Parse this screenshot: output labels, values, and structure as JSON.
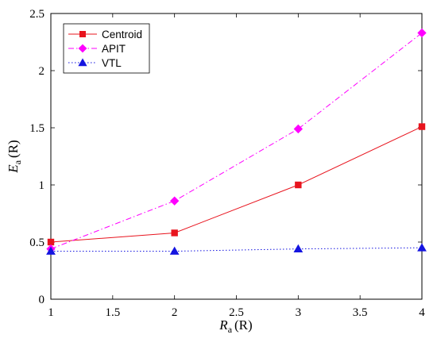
{
  "chart_data": {
    "type": "line",
    "title": "",
    "xlabel": {
      "main": "R",
      "sub": "a",
      "unit": "(R)"
    },
    "ylabel": {
      "main": "E",
      "sub": "a",
      "unit": "(R)"
    },
    "xlim": [
      1,
      4
    ],
    "ylim": [
      0,
      2.5
    ],
    "x_ticks": [
      1,
      1.5,
      2,
      2.5,
      3,
      3.5,
      4
    ],
    "x_tick_labels": [
      "1",
      "1.5",
      "2",
      "2.5",
      "3",
      "3.5",
      "4"
    ],
    "y_ticks": [
      0,
      0.5,
      1,
      1.5,
      2,
      2.5
    ],
    "y_tick_labels": [
      "0",
      "0.5",
      "1",
      "1.5",
      "2",
      "2.5"
    ],
    "grid": false,
    "legend_position": "top-left",
    "x": [
      1,
      2,
      3,
      4
    ],
    "series": [
      {
        "name": "Centroid",
        "values": [
          0.5,
          0.58,
          1.0,
          1.51
        ],
        "color": "#e8141e",
        "marker": "square",
        "line_style": "solid"
      },
      {
        "name": "APIT",
        "values": [
          0.44,
          0.86,
          1.49,
          2.33
        ],
        "color": "#ff00ff",
        "marker": "diamond",
        "line_style": "dashdot"
      },
      {
        "name": "VTL",
        "values": [
          0.42,
          0.42,
          0.44,
          0.45
        ],
        "color": "#1515e0",
        "marker": "triangle",
        "line_style": "dotted"
      }
    ]
  }
}
